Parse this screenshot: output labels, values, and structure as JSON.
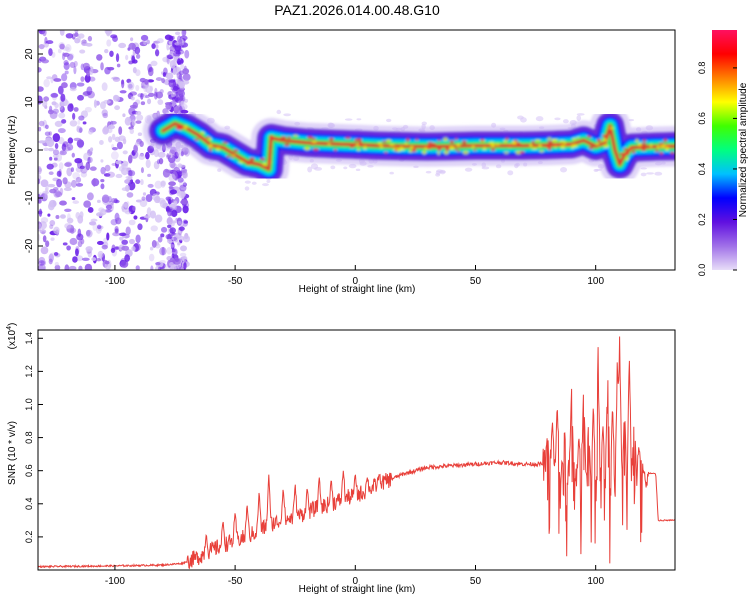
{
  "title": "PAZ1.2026.014.00.48.G10",
  "chart_data": [
    {
      "type": "heatmap",
      "title": "PAZ1.2026.014.00.48.G10",
      "xlabel": "Height of straight line (km)",
      "ylabel": "Frequency (Hz)",
      "xlim": [
        -132,
        133
      ],
      "ylim": [
        -25,
        25
      ],
      "xticks": [
        -100,
        -50,
        0,
        50,
        100
      ],
      "yticks": [
        -20,
        -10,
        0,
        10,
        20
      ],
      "colorbar": {
        "label": "Normalized spectral amplitude",
        "range": [
          0,
          0.95
        ],
        "ticks": [
          0.0,
          0.2,
          0.4,
          0.6,
          0.8
        ],
        "colors": [
          "#e8ddf8",
          "#a070e8",
          "#6010e0",
          "#0000ff",
          "#00c0ff",
          "#00ff80",
          "#40ff00",
          "#ffff00",
          "#ff8000",
          "#ff0000",
          "#ff1060"
        ]
      },
      "ridge_center": [
        [
          -80,
          4
        ],
        [
          -75,
          5.5
        ],
        [
          -70,
          4.5
        ],
        [
          -65,
          3
        ],
        [
          -60,
          1
        ],
        [
          -55,
          0.5
        ],
        [
          -50,
          -1
        ],
        [
          -45,
          -2.5
        ],
        [
          -40,
          -3
        ],
        [
          -36,
          -4
        ],
        [
          -35,
          2.5
        ],
        [
          -30,
          2
        ],
        [
          -20,
          1.5
        ],
        [
          -10,
          1.3
        ],
        [
          0,
          1.1
        ],
        [
          10,
          0.9
        ],
        [
          20,
          0.8
        ],
        [
          30,
          0.7
        ],
        [
          40,
          0.8
        ],
        [
          50,
          0.9
        ],
        [
          60,
          0.9
        ],
        [
          70,
          0.9
        ],
        [
          80,
          1
        ],
        [
          90,
          1.2
        ],
        [
          95,
          2
        ],
        [
          100,
          0.8
        ],
        [
          104,
          1.5
        ],
        [
          106,
          5
        ],
        [
          108,
          0
        ],
        [
          110,
          -3
        ],
        [
          112,
          -1
        ],
        [
          115,
          0.5
        ],
        [
          120,
          0.6
        ],
        [
          125,
          0.7
        ],
        [
          133,
          0.8
        ]
      ]
    },
    {
      "type": "line",
      "xlabel": "Height of straight line (km)",
      "ylabel": "SNR (10 * v/v)",
      "yscale_label": "(x10",
      "yscale_exponent": "4",
      "xlim": [
        -132,
        133
      ],
      "ylim": [
        0,
        1.45
      ],
      "xticks": [
        -100,
        -50,
        0,
        50,
        100
      ],
      "yticks": [
        0.2,
        0.4,
        0.6,
        0.8,
        1.0,
        1.2,
        1.4
      ],
      "color": "#e8403a",
      "series": [
        {
          "name": "SNR",
          "envelope": [
            [
              -132,
              0.02
            ],
            [
              -100,
              0.025
            ],
            [
              -80,
              0.03
            ],
            [
              -72,
              0.04
            ],
            [
              -65,
              0.08
            ],
            [
              -60,
              0.12
            ],
            [
              -55,
              0.15
            ],
            [
              -50,
              0.18
            ],
            [
              -45,
              0.2
            ],
            [
              -40,
              0.24
            ],
            [
              -35,
              0.28
            ],
            [
              -30,
              0.3
            ],
            [
              -25,
              0.32
            ],
            [
              -20,
              0.35
            ],
            [
              -15,
              0.38
            ],
            [
              -10,
              0.4
            ],
            [
              -5,
              0.43
            ],
            [
              0,
              0.45
            ],
            [
              5,
              0.48
            ],
            [
              10,
              0.52
            ],
            [
              15,
              0.55
            ],
            [
              20,
              0.58
            ],
            [
              25,
              0.6
            ],
            [
              30,
              0.62
            ],
            [
              40,
              0.63
            ],
            [
              50,
              0.64
            ],
            [
              60,
              0.65
            ],
            [
              70,
              0.64
            ],
            [
              78,
              0.64
            ],
            [
              80,
              0.62
            ],
            [
              90,
              0.6
            ],
            [
              100,
              0.55
            ],
            [
              110,
              0.5
            ],
            [
              112,
              0.6
            ],
            [
              125,
              0.58
            ],
            [
              126,
              0.3
            ],
            [
              133,
              0.3
            ]
          ],
          "spikes": [
            [
              -62,
              0.22
            ],
            [
              -55,
              0.3
            ],
            [
              -50,
              0.35
            ],
            [
              -45,
              0.4
            ],
            [
              -40,
              0.48
            ],
            [
              -36,
              0.58
            ],
            [
              -30,
              0.5
            ],
            [
              -25,
              0.52
            ],
            [
              -20,
              0.5
            ],
            [
              -15,
              0.56
            ],
            [
              -10,
              0.55
            ],
            [
              -5,
              0.6
            ],
            [
              0,
              0.58
            ],
            [
              5,
              0.56
            ],
            [
              10,
              0.58
            ],
            [
              80,
              0.82
            ],
            [
              82,
              0.9
            ],
            [
              84,
              1.0
            ],
            [
              87,
              0.85
            ],
            [
              90,
              1.1
            ],
            [
              93,
              0.8
            ],
            [
              95,
              1.12
            ],
            [
              97,
              0.9
            ],
            [
              99,
              1.0
            ],
            [
              101,
              1.35
            ],
            [
              103,
              0.88
            ],
            [
              105,
              1.2
            ],
            [
              107,
              1.0
            ],
            [
              109,
              1.3
            ],
            [
              110,
              1.45
            ],
            [
              112,
              1.0
            ],
            [
              114,
              1.3
            ],
            [
              116,
              0.9
            ],
            [
              118,
              0.75
            ],
            [
              120,
              0.6
            ]
          ]
        }
      ]
    }
  ]
}
